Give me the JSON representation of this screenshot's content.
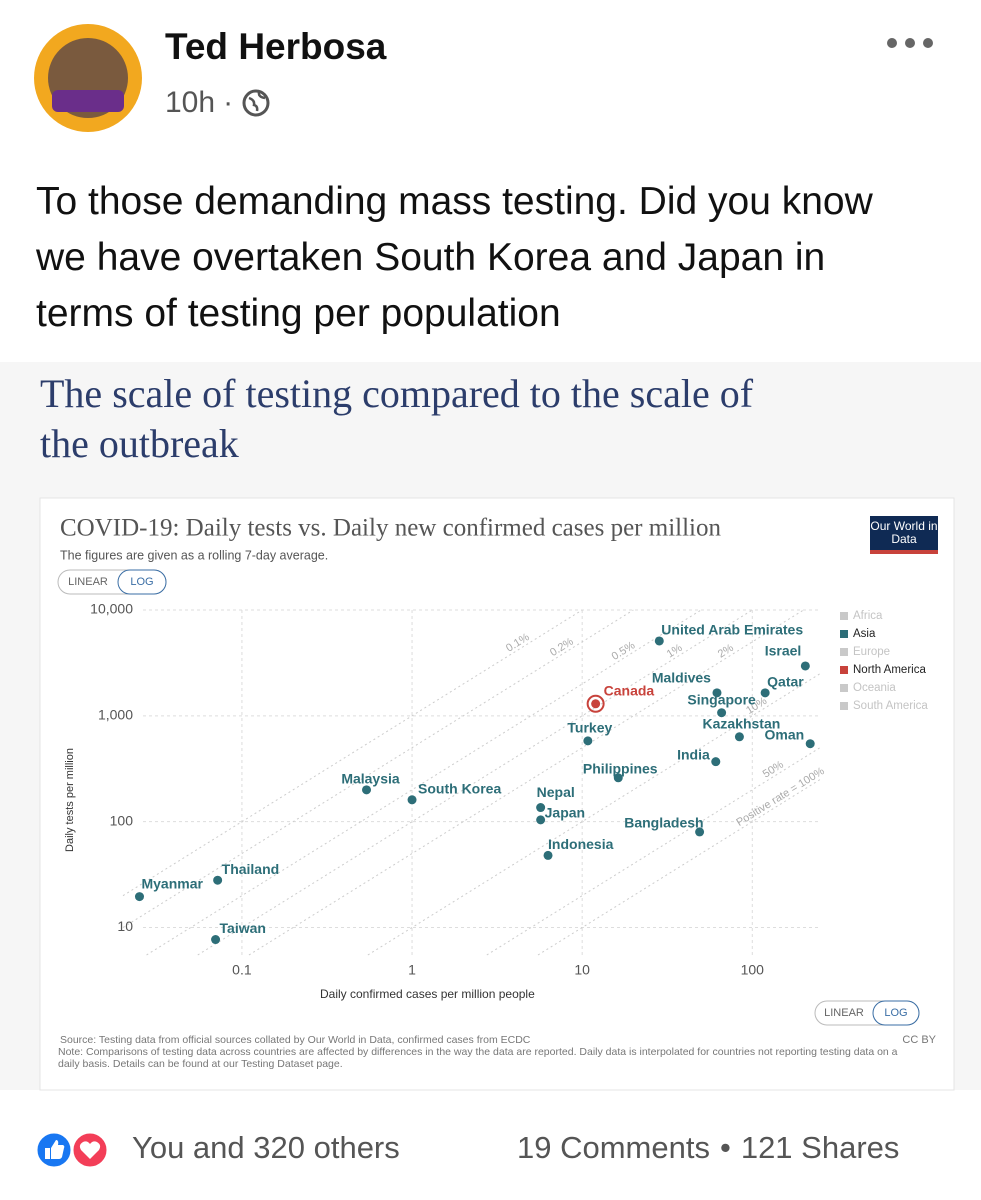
{
  "post": {
    "author": "Ted Herbosa",
    "time": "10h",
    "text": "To those demanding mass testing. Did you know we have overtaken South Korea and Japan in terms of testing per population",
    "card_title": "The scale of testing compared to the scale of the outbreak",
    "reactions": "You and 320 others",
    "comments": "19 Comments",
    "shares": "121 Shares"
  },
  "chart_data": {
    "type": "scatter",
    "title": "COVID-19: Daily tests vs. Daily new confirmed cases per million",
    "subtitle": "The figures are given as a rolling 7-day average.",
    "logo": "Our World in Data",
    "scale_toggle": {
      "linear": "LINEAR",
      "log": "LOG"
    },
    "x_label": "Daily confirmed cases per million people",
    "y_label": "Daily tests per million",
    "xscale": "log",
    "yscale": "log",
    "xlim": [
      0.02,
      250
    ],
    "ylim": [
      5.5,
      10000
    ],
    "xticks": [
      0.1,
      1,
      10,
      100
    ],
    "yticks": [
      10,
      100,
      {
        "value": 1000,
        "label": "1,000"
      },
      {
        "value": 10000,
        "label": "10,000"
      }
    ],
    "grid": true,
    "legend_position": "right",
    "positive_rate_lines": [
      {
        "value": 0.1,
        "label": "0.1%"
      },
      {
        "value": 0.2,
        "label": "0.2%"
      },
      {
        "value": 0.5,
        "label": "0.5%"
      },
      {
        "value": 1,
        "label": "1%"
      },
      {
        "value": 2,
        "label": "2%"
      },
      {
        "value": 10,
        "label": "10%"
      },
      {
        "value": 50,
        "label": "50%"
      },
      {
        "value": 100,
        "label": "Positive rate = 100%"
      }
    ],
    "series": [
      {
        "name": "Africa",
        "color": "#c9c9c9",
        "labels": [],
        "x": [],
        "values": []
      },
      {
        "name": "Asia",
        "color": "#2d6e78",
        "labels": [
          "United Arab Emirates",
          "Israel",
          "Maldives",
          "Qatar",
          "Singapore",
          "Kazakhstan",
          "Turkey",
          "Oman",
          "India",
          "Philippines",
          "Malaysia",
          "South Korea",
          "Nepal",
          "Japan",
          "Bangladesh",
          "Indonesia",
          "Thailand",
          "Myanmar",
          "Taiwan"
        ],
        "x": [
          28.4,
          205,
          62,
          119,
          66,
          84,
          10.8,
          219,
          61,
          16.3,
          0.54,
          1.0,
          5.7,
          5.7,
          49,
          6.3,
          0.072,
          0.025,
          0.07
        ],
        "values": [
          5100,
          2960,
          1650,
          1650,
          1070,
          634,
          580,
          545,
          369,
          260,
          200,
          161,
          136,
          104,
          80,
          48,
          28,
          19.6,
          7.7
        ]
      },
      {
        "name": "Europe",
        "color": "#c9c9c9",
        "labels": [],
        "x": [],
        "values": []
      },
      {
        "name": "North America",
        "color": "#c8423b",
        "labels": [
          "Canada"
        ],
        "x": [
          12
        ],
        "values": [
          1300
        ]
      },
      {
        "name": "Oceania",
        "color": "#c9c9c9",
        "labels": [],
        "x": [],
        "values": []
      },
      {
        "name": "South America",
        "color": "#c9c9c9",
        "labels": [],
        "x": [],
        "values": []
      }
    ],
    "source": "Source: Testing data from official sources collated by Our World in Data, confirmed cases from ECDC",
    "note": "Note: Comparisons of testing data across countries are affected by differences in the way the data are reported. Daily data is interpolated for countries not reporting testing data on a daily basis. Details can be found at our Testing Dataset page.",
    "license": "CC BY"
  }
}
